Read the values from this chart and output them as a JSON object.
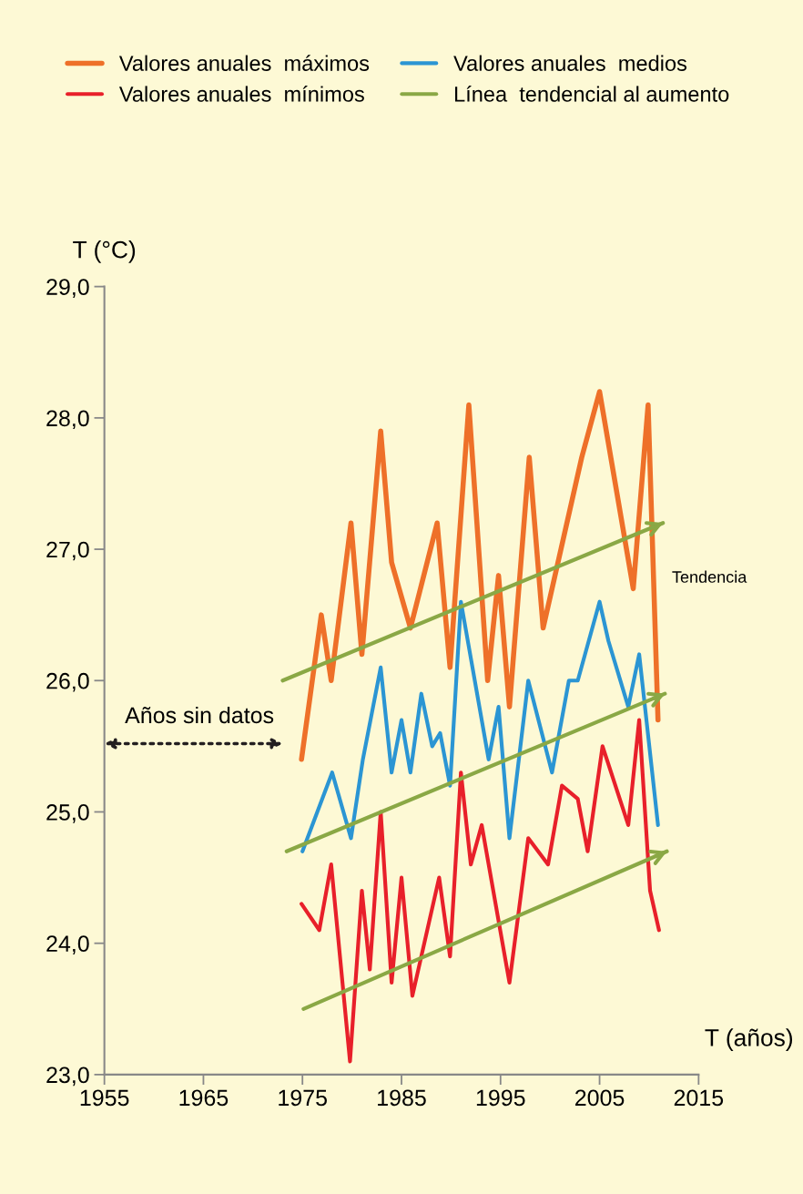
{
  "chart_data": {
    "type": "line",
    "xlabel": "T (años)",
    "ylabel": "T (°C)",
    "xlim": [
      1955,
      2015
    ],
    "xticks": [
      1955,
      1965,
      1975,
      1985,
      1995,
      2005,
      2015
    ],
    "ylim": [
      23,
      29
    ],
    "yticks": [
      {
        "value": 23,
        "label": "23,0"
      },
      {
        "value": 24,
        "label": "24,0"
      },
      {
        "value": 25,
        "label": "25,0"
      },
      {
        "value": 26,
        "label": "26,0"
      },
      {
        "value": 27,
        "label": "27,0"
      },
      {
        "value": 28,
        "label": "28,0"
      },
      {
        "value": 29,
        "label": "29,0"
      }
    ],
    "grid": false,
    "legend": "top left",
    "marker": "none",
    "line_style": "solid",
    "annotations": [
      "Tendencia",
      "Años sin datos"
    ],
    "series": [
      {
        "name": "Valores anuales  máximos",
        "color": "#ee7029",
        "x": [
          1974.9,
          1976.9,
          1977.9,
          1979.9,
          1981.0,
          1982.9,
          1984.0,
          1985.9,
          1988.6,
          1989.9,
          1991.8,
          1993.7,
          1994.8,
          1995.9,
          1997.9,
          1999.3,
          2003.2,
          2005.0,
          2008.4,
          2009.9,
          2010.9
        ],
        "values": [
          25.4,
          26.5,
          26.0,
          27.2,
          26.2,
          27.9,
          26.9,
          26.4,
          27.2,
          26.1,
          28.1,
          26.0,
          26.8,
          25.8,
          27.7,
          26.4,
          27.7,
          28.2,
          26.7,
          28.1,
          25.7
        ]
      },
      {
        "name": "Valores anuales  mínimos",
        "color": "#e8202a",
        "x": [
          1974.9,
          1976.7,
          1977.9,
          1979.8,
          1981.0,
          1981.8,
          1982.9,
          1984.0,
          1985.0,
          1986.1,
          1988.8,
          1989.9,
          1991.0,
          1992.0,
          1993.1,
          1995.9,
          1997.8,
          1999.8,
          2001.2,
          2002.8,
          2003.8,
          2005.3,
          2007.9,
          2009.0,
          2010.1,
          2011.0
        ],
        "values": [
          24.3,
          24.1,
          24.6,
          23.1,
          24.4,
          23.8,
          25.0,
          23.7,
          24.5,
          23.6,
          24.5,
          23.9,
          25.3,
          24.6,
          24.9,
          23.7,
          24.8,
          24.6,
          25.2,
          25.1,
          24.7,
          25.5,
          24.9,
          25.7,
          24.4,
          24.1
        ]
      },
      {
        "name": "Valores anuales  medios",
        "color": "#2b95d3",
        "x": [
          1975.0,
          1978.0,
          1979.9,
          1981.1,
          1982.9,
          1984.0,
          1985.0,
          1985.9,
          1987.0,
          1988.1,
          1988.9,
          1989.9,
          1991.0,
          1993.8,
          1994.8,
          1995.9,
          1997.8,
          2000.2,
          2001.9,
          2002.8,
          2005.0,
          2005.9,
          2007.9,
          2009.0,
          2010.9
        ],
        "values": [
          24.7,
          25.3,
          24.8,
          25.4,
          26.1,
          25.3,
          25.7,
          25.3,
          25.9,
          25.5,
          25.6,
          25.2,
          26.6,
          25.4,
          25.8,
          24.8,
          26.0,
          25.3,
          26.0,
          26.0,
          26.6,
          26.3,
          25.8,
          26.2,
          24.9
        ]
      },
      {
        "name": "Línea  tendencial al aumento",
        "type": "line",
        "color": "#8aa845",
        "x": [
          1973.0,
          2011.4
        ],
        "values": [
          26.0,
          27.2
        ]
      },
      {
        "type": "line",
        "color": "#8aa845",
        "x": [
          1973.4,
          2011.6
        ],
        "values": [
          24.7,
          25.9
        ]
      },
      {
        "type": "line",
        "color": "#8aa845",
        "x": [
          1975.1,
          2011.8
        ],
        "values": [
          23.5,
          24.7
        ]
      }
    ]
  }
}
